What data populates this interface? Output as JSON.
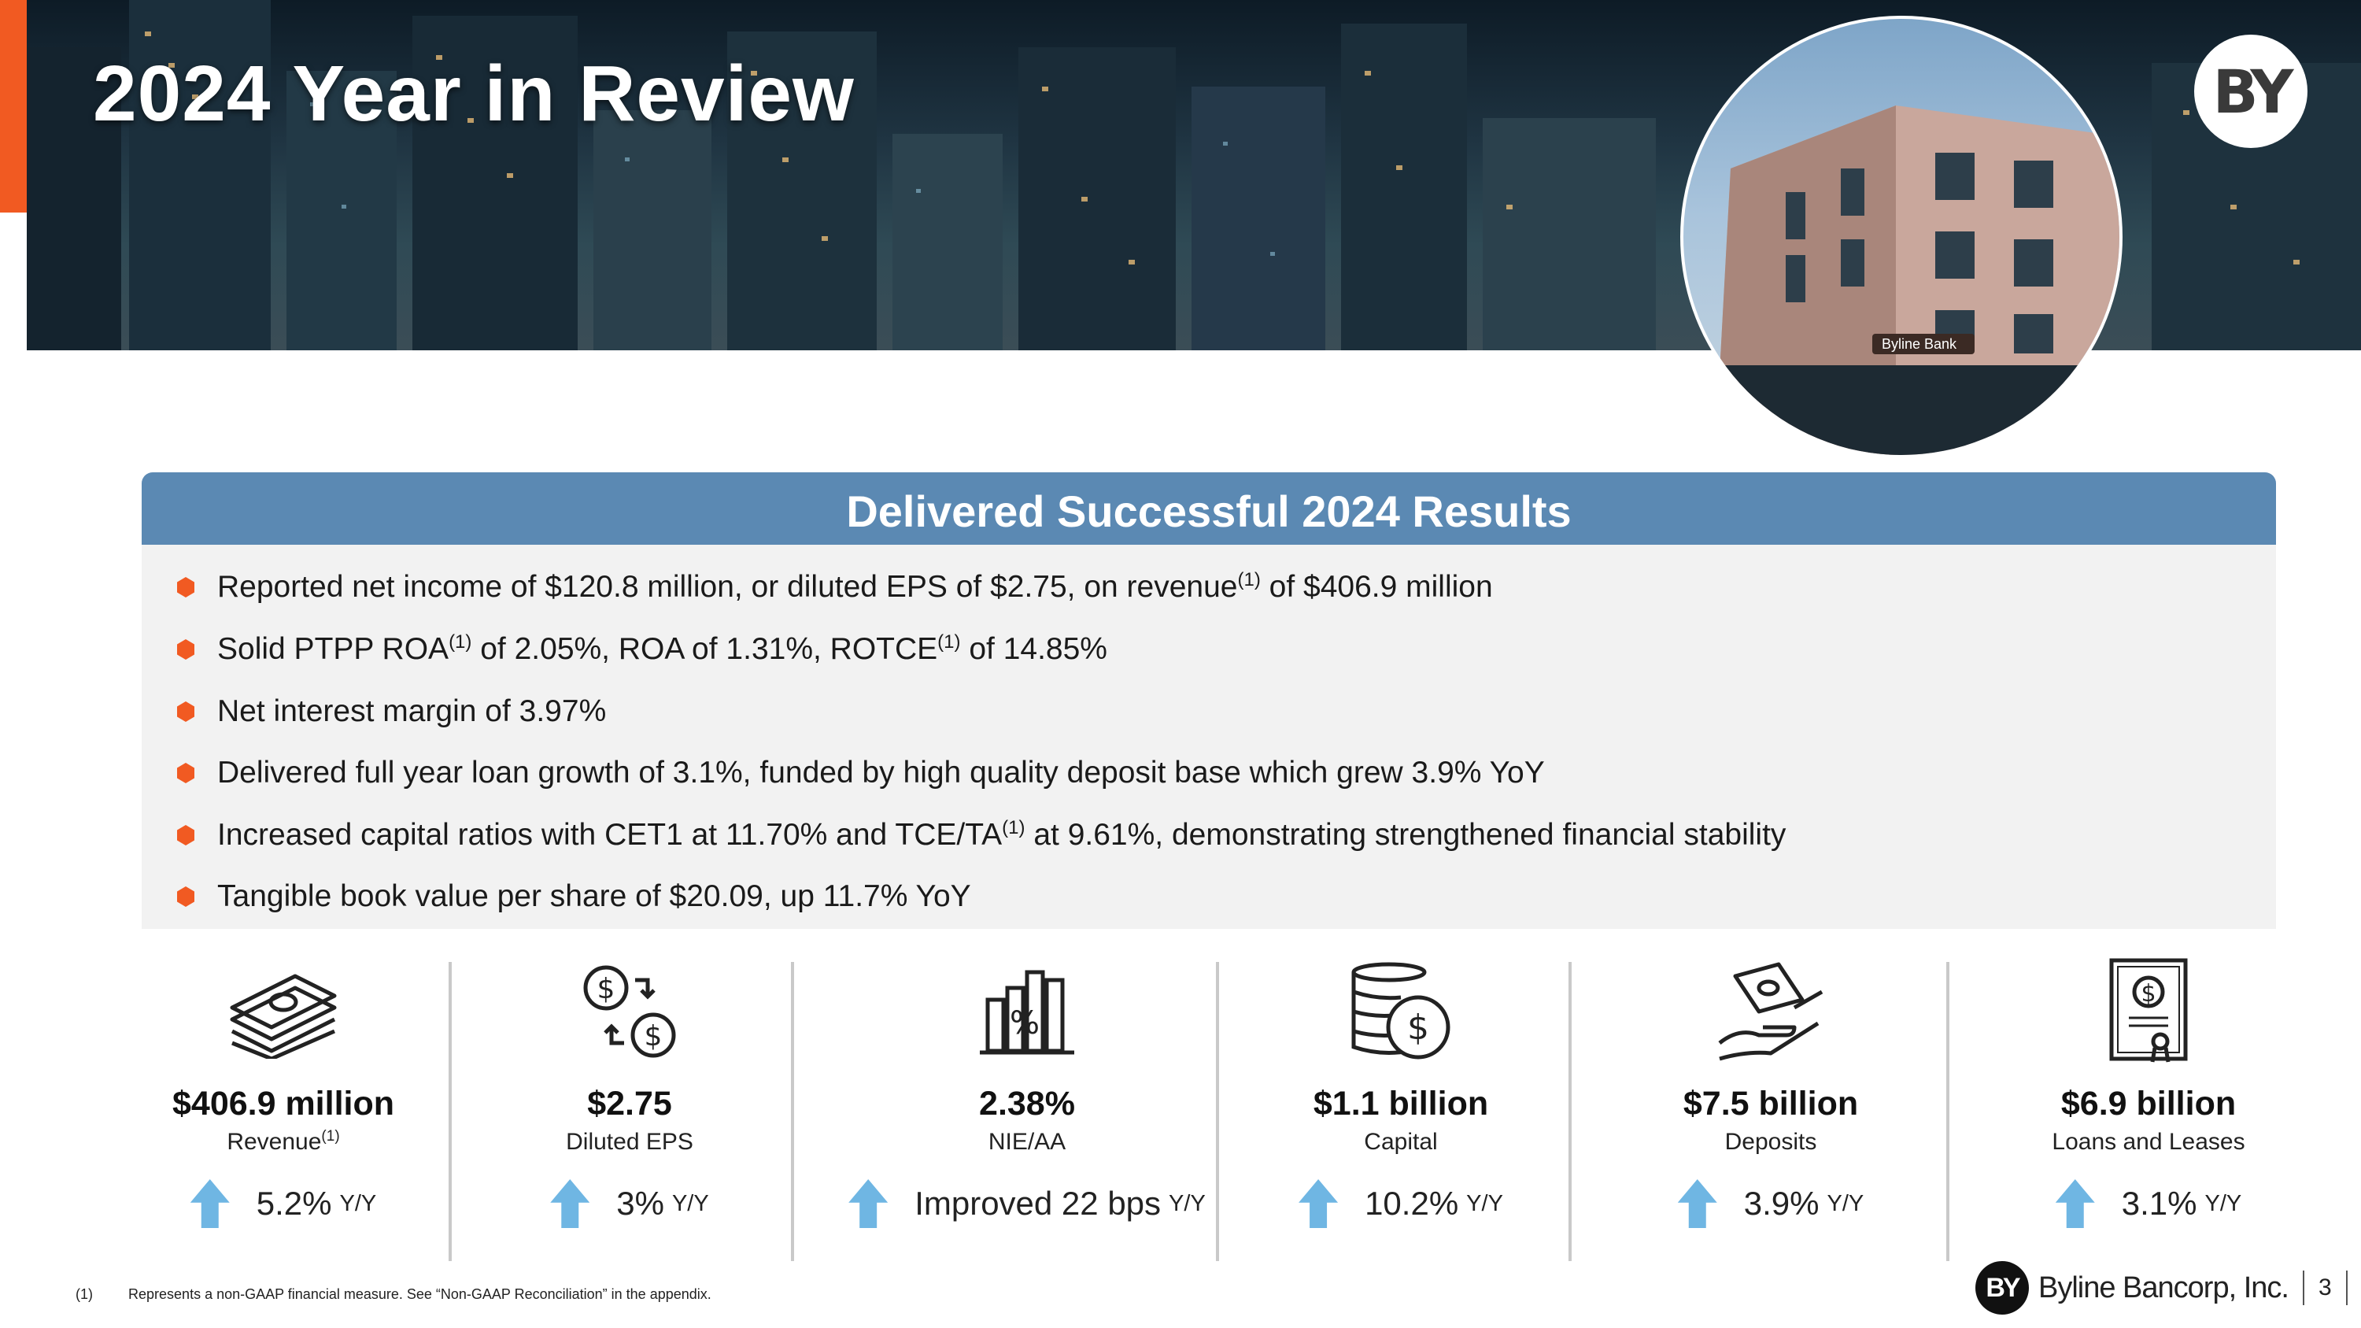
{
  "header": {
    "title": "2024 Year in Review",
    "logo_text": "BY",
    "building_sign": "Byline Bank"
  },
  "panel": {
    "title": "Delivered Successful 2024 Results",
    "bullets": [
      {
        "a": "Reported net income of $120.8 million, or diluted EPS of $2.75, on revenue",
        "sup1": "(1)",
        "b": " of $406.9 million",
        "sup2": "",
        "c": ""
      },
      {
        "a": "Solid PTPP ROA",
        "sup1": "(1)",
        "b": " of 2.05%, ROA of 1.31%, ROTCE",
        "sup2": "(1)",
        "c": " of 14.85%"
      },
      {
        "a": "Net interest margin of 3.97%",
        "sup1": "",
        "b": "",
        "sup2": "",
        "c": ""
      },
      {
        "a": "Delivered full year loan growth of 3.1%, funded by high quality deposit base which grew 3.9% YoY",
        "sup1": "",
        "b": "",
        "sup2": "",
        "c": ""
      },
      {
        "a": "Increased capital ratios with CET1 at 11.70% and TCE/TA",
        "sup1": "(1)",
        "b": " at 9.61%, demonstrating strengthened financial stability",
        "sup2": "",
        "c": ""
      },
      {
        "a": "Tangible book value per share of $20.09, up 11.7% YoY",
        "sup1": "",
        "b": "",
        "sup2": "",
        "c": ""
      }
    ]
  },
  "metrics": [
    {
      "icon": "cash-stack-icon",
      "value": "$406.9 million",
      "label": "Revenue",
      "label_sup": "(1)",
      "change": "5.2%",
      "unit": "Y/Y"
    },
    {
      "icon": "dollar-exchange-icon",
      "value": "$2.75",
      "label": "Diluted EPS",
      "label_sup": "",
      "change": "3%",
      "unit": "Y/Y"
    },
    {
      "icon": "percent-chart-icon",
      "value": "2.38%",
      "label": "NIE/AA",
      "label_sup": "",
      "change": "Improved 22 bps",
      "unit": "Y/Y"
    },
    {
      "icon": "coin-stack-icon",
      "value": "$1.1 billion",
      "label": "Capital",
      "label_sup": "",
      "change": "10.2%",
      "unit": "Y/Y"
    },
    {
      "icon": "hand-money-icon",
      "value": "$7.5 billion",
      "label": "Deposits",
      "label_sup": "",
      "change": "3.9%",
      "unit": "Y/Y"
    },
    {
      "icon": "certificate-icon",
      "value": "$6.9 billion",
      "label": "Loans and Leases",
      "label_sup": "",
      "change": "3.1%",
      "unit": "Y/Y"
    }
  ],
  "colors": {
    "accent": "#f15a22",
    "panel_header": "#5b89b3",
    "arrow": "#6fb6e3"
  },
  "footer": {
    "footnote_num": "(1)",
    "footnote_text": "Represents a non-GAAP financial measure.  See “Non-GAAP Reconciliation” in the appendix.",
    "brand_mark": "BY",
    "brand_name": "Byline Bancorp, Inc.",
    "page": "3"
  }
}
